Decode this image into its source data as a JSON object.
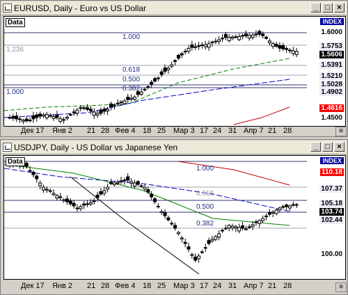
{
  "windows": [
    {
      "title": "EURUSD, Daily - Euro vs US Dollar",
      "data_label": "Data",
      "index_label": "INDEX",
      "price_labels": [
        "1.6000",
        "1.5753",
        "1.5606",
        "1.5391",
        "1.5210",
        "1.5028",
        "1.4902",
        "1.4616",
        "1.4500"
      ],
      "fib_labels": [
        "1.000",
        "1.236",
        "0.618",
        "0.500",
        "0.382",
        "1.000"
      ],
      "dates": [
        "Дек 17",
        "Янв 2",
        "21",
        "28",
        "Фев 4",
        "18",
        "25",
        "Мар 3",
        "17",
        "24",
        "31",
        "Апр 7",
        "21",
        "28"
      ]
    },
    {
      "title": "USDJPY, Daily - US Dollar vs Japanese Yen",
      "data_label": "Data",
      "index_label": "INDEX",
      "price_labels": [
        "110.18",
        "107.37",
        "105.18",
        "103.74",
        "102.44",
        "100.00"
      ],
      "fib_labels": [
        "1.000",
        "0.618",
        "0.500",
        "0.382"
      ],
      "dates": [
        "Дек 17",
        "Янв 2",
        "21",
        "28",
        "Фев 4",
        "18",
        "25",
        "Мар 3",
        "17",
        "24",
        "31",
        "Апр 7",
        "21",
        "28"
      ]
    }
  ],
  "colors": {
    "ma_green": "#008000",
    "ma_blue": "#0000c0",
    "ma_red": "#c00000",
    "current_price_bg": "#000000",
    "alert_price_bg": "#ff0000"
  }
}
